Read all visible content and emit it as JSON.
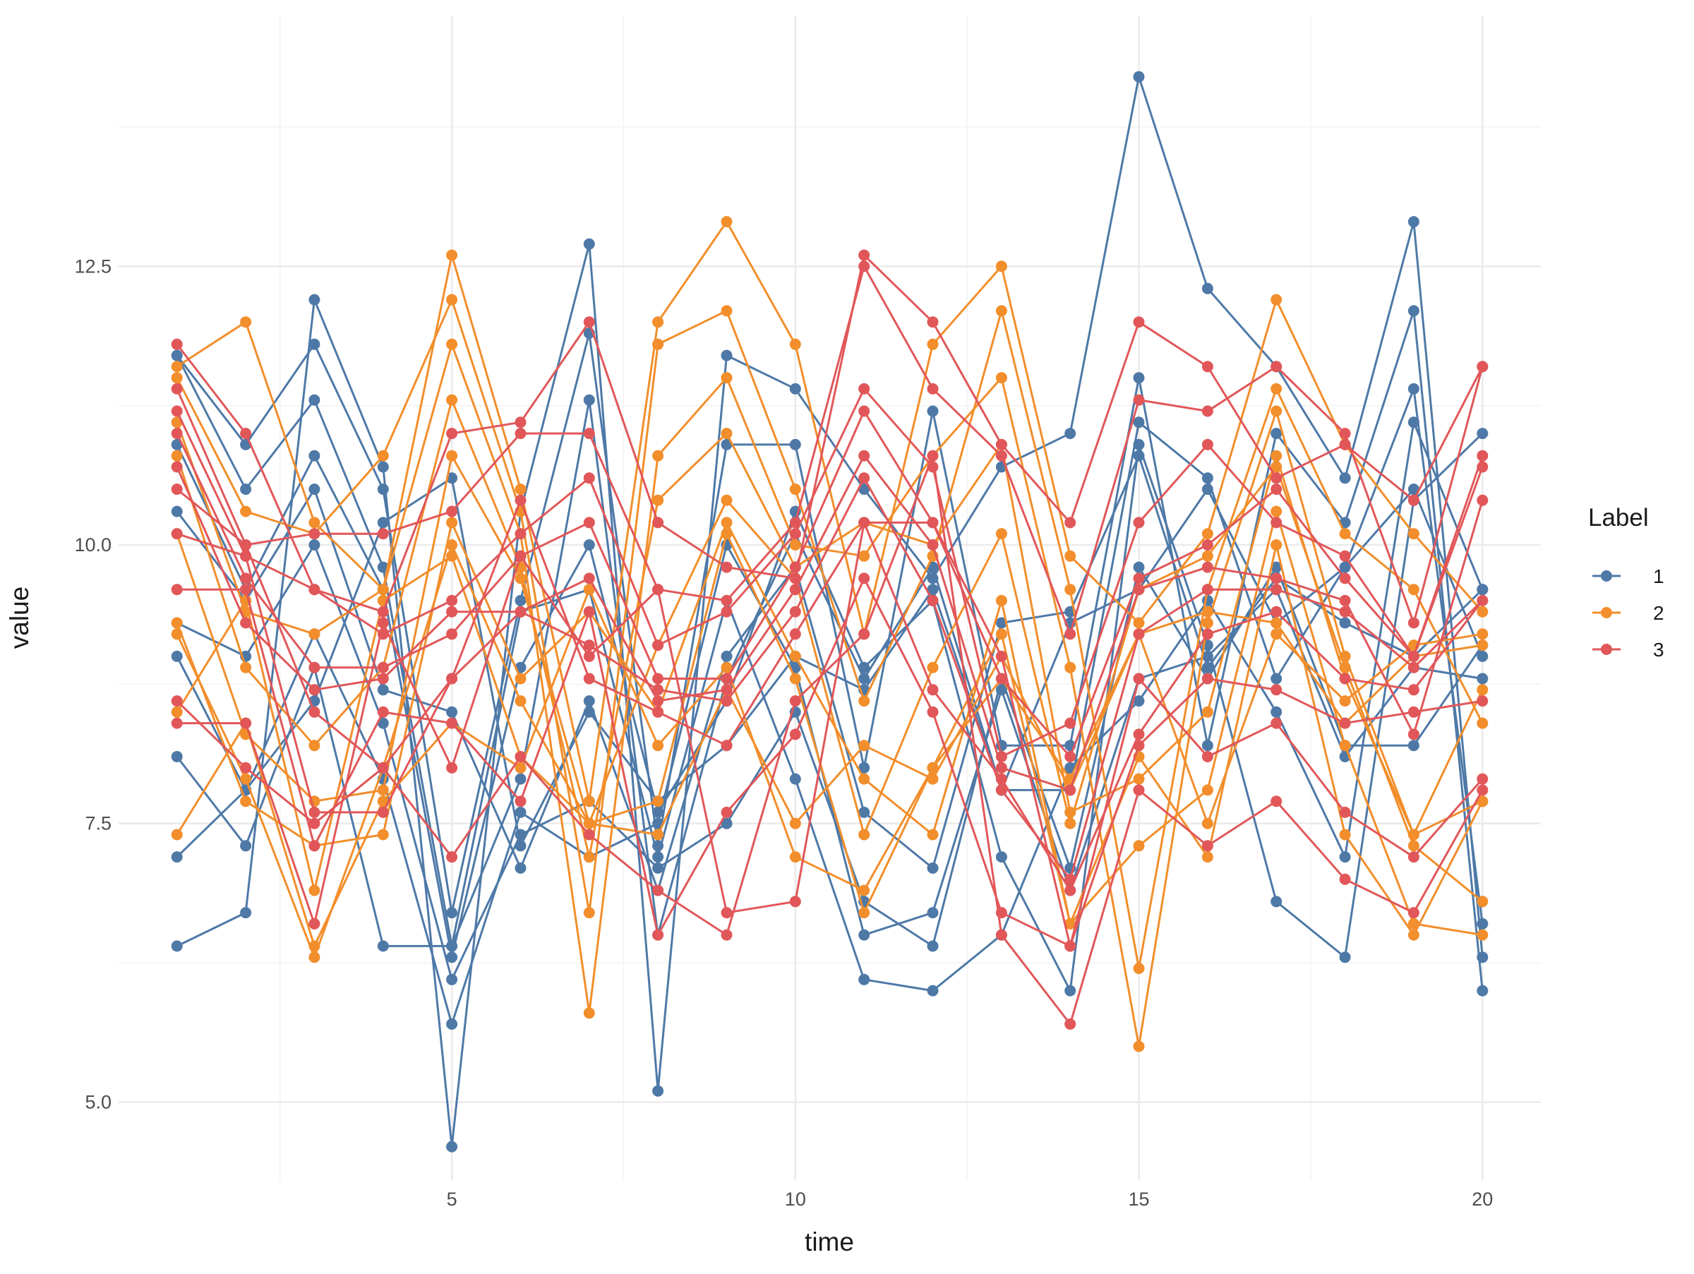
{
  "chart_data": {
    "type": "line",
    "title": "",
    "xlabel": "time",
    "ylabel": "value",
    "xlim": [
      0.15,
      20.85
    ],
    "ylim": [
      4.3,
      14.75
    ],
    "x_ticks": [
      5,
      10,
      15,
      20
    ],
    "x_tick_labels": [
      "5",
      "10",
      "15",
      "20"
    ],
    "y_ticks": [
      5.0,
      7.5,
      10.0,
      12.5
    ],
    "y_tick_labels": [
      "5.0",
      "7.5",
      "10.0",
      "12.5"
    ],
    "x_minor": [
      2.5,
      7.5,
      12.5,
      17.5
    ],
    "y_minor": [
      6.25,
      8.75,
      11.25,
      13.75
    ],
    "grid": true,
    "legend": {
      "title": "Label",
      "placement": "right"
    },
    "x": [
      1,
      2,
      3,
      4,
      5,
      6,
      7,
      8,
      9,
      10,
      11,
      12,
      13,
      14,
      15,
      16,
      17,
      18,
      19,
      20
    ],
    "series": [
      {
        "name": "1",
        "color": "#4E79A7",
        "lines": [
          [
            6.4,
            6.7,
            12.2,
            10.7,
            4.6,
            10.3,
            12.7,
            5.1,
            11.7,
            11.4,
            10.5,
            9.7,
            10.7,
            11.0,
            14.2,
            12.3,
            11.6,
            10.6,
            12.9,
            6.3
          ],
          [
            11.7,
            10.9,
            11.8,
            10.5,
            6.7,
            9.5,
            11.9,
            7.3,
            10.9,
            10.9,
            8.0,
            11.2,
            8.2,
            8.2,
            11.5,
            8.2,
            11.0,
            10.2,
            12.1,
            6.0
          ],
          [
            11.7,
            10.5,
            11.3,
            9.8,
            6.4,
            7.9,
            11.3,
            6.5,
            8.8,
            10.1,
            8.8,
            9.8,
            7.8,
            7.8,
            11.1,
            10.6,
            8.8,
            9.8,
            11.4,
            6.6
          ],
          [
            10.9,
            9.6,
            10.8,
            9.6,
            6.3,
            8.9,
            10.0,
            7.6,
            8.6,
            10.3,
            8.9,
            9.5,
            7.2,
            6.0,
            10.9,
            9.1,
            6.8,
            6.3,
            10.4,
            11.0
          ],
          [
            10.3,
            9.5,
            10.5,
            8.7,
            8.5,
            7.1,
            8.6,
            6.9,
            9.0,
            9.8,
            7.6,
            7.1,
            9.3,
            9.4,
            10.8,
            8.9,
            9.7,
            9.3,
            9.0,
            9.6
          ],
          [
            9.3,
            9.0,
            10.0,
            8.4,
            6.1,
            7.4,
            7.7,
            7.1,
            7.5,
            8.5,
            6.8,
            6.4,
            8.8,
            7.1,
            9.8,
            8.8,
            9.8,
            8.2,
            8.2,
            9.1
          ],
          [
            9.0,
            7.8,
            9.2,
            7.9,
            5.7,
            7.6,
            7.2,
            7.5,
            10.0,
            8.9,
            6.5,
            6.7,
            8.7,
            6.9,
            8.8,
            9.0,
            9.6,
            8.1,
            8.9,
            8.8
          ],
          [
            8.1,
            7.3,
            8.9,
            6.4,
            6.4,
            9.4,
            9.6,
            7.2,
            9.5,
            7.9,
            6.1,
            6.0,
            6.5,
            8.0,
            8.6,
            9.5,
            8.5,
            7.2,
            11.1,
            9.6
          ],
          [
            7.2,
            7.8,
            8.6,
            10.2,
            10.6,
            7.3,
            8.5,
            7.7,
            8.2,
            9.0,
            8.7,
            9.6,
            7.8,
            9.3,
            9.6,
            10.5,
            9.3,
            9.8,
            10.5,
            9.0
          ]
        ]
      },
      {
        "name": "2",
        "color": "#F28E2B",
        "lines": [
          [
            11.6,
            12.0,
            10.2,
            9.6,
            12.6,
            10.5,
            7.7,
            12.0,
            12.9,
            11.8,
            9.2,
            11.8,
            12.5,
            9.9,
            9.3,
            10.1,
            12.2,
            10.9,
            10.1,
            9.4
          ],
          [
            11.5,
            10.3,
            10.1,
            10.8,
            12.2,
            10.3,
            6.7,
            11.8,
            12.1,
            10.5,
            8.6,
            9.9,
            12.1,
            9.6,
            6.2,
            9.6,
            11.4,
            10.1,
            9.6,
            8.4
          ],
          [
            11.1,
            9.4,
            9.2,
            9.6,
            11.8,
            10.1,
            5.8,
            10.8,
            11.5,
            10.0,
            9.9,
            10.8,
            11.5,
            8.9,
            5.5,
            9.3,
            11.2,
            9.0,
            7.4,
            8.7
          ],
          [
            10.8,
            8.9,
            8.2,
            8.9,
            11.3,
            9.8,
            7.2,
            10.4,
            11.0,
            9.8,
            10.2,
            10.0,
            10.9,
            7.6,
            7.9,
            8.5,
            10.8,
            8.8,
            7.4,
            7.7
          ],
          [
            10.1,
            8.3,
            7.7,
            7.8,
            10.8,
            9.7,
            7.5,
            9.1,
            10.4,
            9.7,
            7.4,
            8.9,
            10.1,
            7.5,
            9.6,
            9.9,
            10.7,
            8.9,
            7.3,
            6.8
          ],
          [
            9.3,
            7.7,
            7.3,
            7.4,
            10.2,
            8.8,
            9.4,
            8.5,
            10.2,
            9.0,
            7.9,
            7.4,
            9.5,
            6.6,
            7.3,
            7.8,
            10.3,
            8.2,
            6.6,
            6.5
          ],
          [
            9.2,
            7.9,
            6.3,
            8.0,
            10.0,
            8.6,
            7.5,
            7.7,
            10.1,
            8.8,
            6.7,
            8.0,
            9.2,
            6.6,
            8.1,
            7.2,
            10.0,
            7.4,
            6.5,
            7.7
          ],
          [
            8.5,
            9.5,
            6.9,
            9.5,
            9.9,
            8.1,
            7.5,
            7.4,
            8.7,
            7.5,
            8.2,
            7.9,
            9.0,
            7.8,
            9.2,
            9.4,
            9.3,
            8.4,
            9.0,
            9.1
          ],
          [
            7.4,
            8.4,
            6.4,
            7.7,
            8.4,
            8.0,
            9.6,
            8.2,
            8.9,
            7.2,
            6.9,
            8.0,
            8.8,
            7.9,
            9.2,
            7.5,
            9.2,
            8.6,
            9.1,
            9.2
          ]
        ]
      },
      {
        "name": "3",
        "color": "#E15759",
        "lines": [
          [
            11.8,
            11.0,
            9.6,
            9.4,
            11.0,
            11.1,
            12.0,
            10.2,
            9.8,
            9.7,
            12.6,
            12.0,
            10.9,
            10.2,
            12.0,
            11.6,
            10.6,
            10.9,
            10.4,
            11.6
          ],
          [
            11.4,
            10.0,
            10.1,
            10.1,
            10.3,
            11.0,
            11.0,
            9.6,
            9.5,
            10.2,
            12.5,
            11.4,
            10.8,
            9.2,
            11.3,
            11.2,
            11.6,
            11.0,
            9.3,
            11.6
          ],
          [
            11.2,
            9.9,
            9.6,
            9.2,
            9.5,
            10.1,
            10.6,
            9.1,
            9.4,
            10.1,
            11.4,
            10.7,
            8.1,
            8.4,
            10.2,
            10.9,
            10.2,
            9.9,
            9.0,
            10.8
          ],
          [
            11.0,
            9.7,
            8.9,
            8.9,
            9.2,
            9.9,
            10.2,
            8.8,
            8.8,
            9.8,
            11.2,
            10.2,
            8.8,
            8.1,
            9.7,
            10.0,
            10.5,
            9.7,
            9.0,
            10.7
          ],
          [
            10.7,
            9.3,
            8.7,
            8.8,
            9.4,
            9.4,
            9.7,
            8.6,
            8.7,
            9.6,
            10.8,
            10.0,
            8.0,
            7.8,
            9.6,
            9.8,
            9.7,
            9.5,
            8.3,
            10.4
          ],
          [
            10.5,
            10.0,
            8.5,
            8.0,
            8.8,
            9.4,
            9.1,
            8.7,
            8.6,
            9.4,
            10.6,
            9.5,
            7.8,
            7.0,
            9.2,
            9.6,
            9.6,
            9.4,
            8.9,
            9.5
          ],
          [
            10.1,
            9.9,
            7.6,
            7.6,
            8.8,
            10.4,
            8.8,
            8.5,
            8.2,
            9.2,
            10.2,
            8.7,
            7.9,
            6.9,
            8.3,
            9.2,
            9.4,
            8.8,
            8.7,
            9.5
          ],
          [
            9.6,
            9.6,
            7.3,
            8.5,
            8.4,
            7.7,
            9.4,
            6.5,
            7.6,
            8.3,
            9.7,
            8.5,
            6.7,
            6.4,
            8.8,
            8.1,
            8.4,
            7.6,
            7.2,
            7.9
          ],
          [
            8.6,
            8.0,
            7.5,
            8.0,
            7.2,
            8.1,
            7.4,
            6.9,
            6.5,
            8.6,
            9.2,
            10.8,
            6.5,
            5.7,
            7.8,
            7.3,
            7.7,
            7.0,
            6.7,
            7.8
          ],
          [
            8.4,
            8.4,
            6.6,
            9.3,
            8.0,
            9.9,
            9.0,
            9.6,
            6.7,
            6.8,
            10.2,
            10.2,
            9.0,
            6.4,
            8.2,
            8.8,
            8.7,
            8.4,
            8.5,
            8.6
          ]
        ]
      }
    ]
  }
}
